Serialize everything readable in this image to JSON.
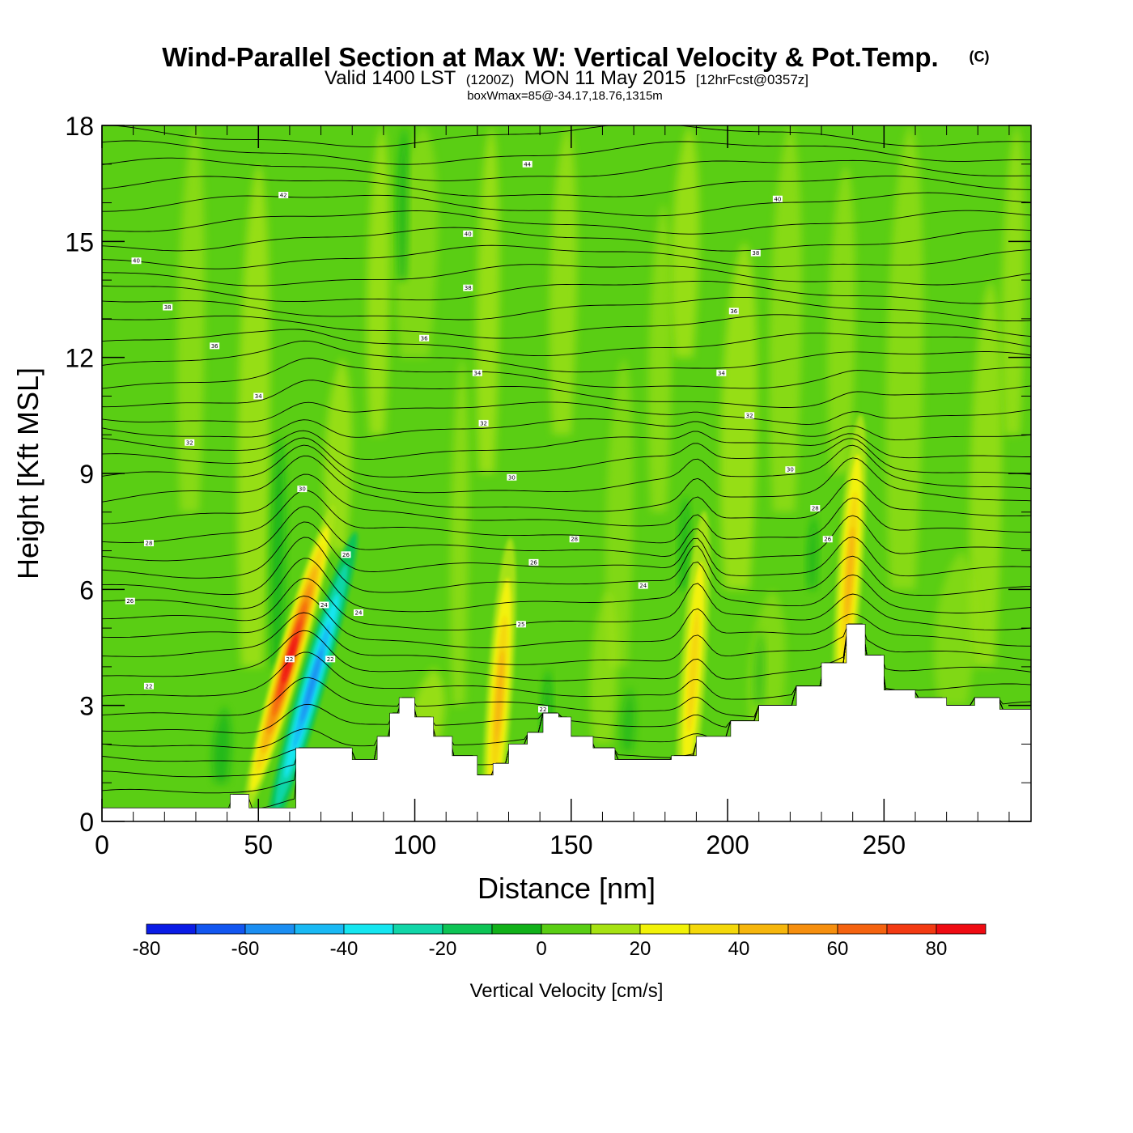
{
  "header": {
    "title": "Wind-Parallel Section at Max W: Vertical Velocity & Pot.Temp.",
    "copyright": "(C)",
    "valid_prefix": "Valid 1400 LST",
    "valid_utc": "(1200Z)",
    "valid_date": "MON 11 May 2015",
    "forecast": "[12hrFcst@0357z]",
    "boxwmax": "boxWmax=85@-34.17,18.76,1315m"
  },
  "chart_data": {
    "type": "cross-section contour",
    "title": "Wind-Parallel Section at Max W: Vertical Velocity & Pot.Temp.",
    "xlabel": "Distance [nm]",
    "ylabel": "Height [Kft MSL]",
    "xlim": [
      0,
      297
    ],
    "ylim": [
      0,
      18
    ],
    "x_ticks": [
      0,
      50,
      100,
      150,
      200,
      250
    ],
    "x_tick_labels": [
      "0",
      "50",
      "100",
      "150",
      "200",
      "250"
    ],
    "y_ticks": [
      0,
      3,
      6,
      9,
      12,
      15,
      18
    ],
    "y_tick_labels": [
      "0",
      "3",
      "6",
      "9",
      "12",
      "15",
      "18"
    ],
    "terrain": {
      "distance": [
        0,
        41,
        41,
        47,
        47,
        62,
        62,
        68,
        68,
        80,
        80,
        88,
        88,
        92,
        92,
        95,
        95,
        100,
        100,
        106,
        106,
        112,
        112,
        120,
        120,
        125,
        125,
        130,
        130,
        136,
        136,
        141,
        141,
        146,
        146,
        150,
        150,
        157,
        157,
        164,
        164,
        182,
        182,
        190,
        190,
        201,
        201,
        210,
        210,
        222,
        222,
        230,
        230,
        238,
        238,
        244,
        244,
        250,
        250,
        260,
        260,
        270,
        270,
        279,
        279,
        287,
        287,
        297
      ],
      "height_kft": [
        0.35,
        0.35,
        0.7,
        0.7,
        0.35,
        0.35,
        1.9,
        1.9,
        1.9,
        1.9,
        1.6,
        1.6,
        2.2,
        2.2,
        2.8,
        2.8,
        3.2,
        3.2,
        2.7,
        2.7,
        2.2,
        2.2,
        1.7,
        1.7,
        1.2,
        1.2,
        1.5,
        1.5,
        2.0,
        2.0,
        2.3,
        2.3,
        2.8,
        2.8,
        2.7,
        2.7,
        2.2,
        2.2,
        1.9,
        1.9,
        1.6,
        1.6,
        1.7,
        1.7,
        2.2,
        2.2,
        2.6,
        2.6,
        3.0,
        3.0,
        3.5,
        3.5,
        4.1,
        4.1,
        5.1,
        5.1,
        4.3,
        4.3,
        3.4,
        3.4,
        3.2,
        3.2,
        3.0,
        3.0,
        3.2,
        3.2,
        2.9,
        2.9
      ]
    },
    "w_maxima": [
      {
        "distance": 60,
        "height_kft": 4.2,
        "w_cms": 85
      },
      {
        "distance": 67,
        "height_kft": 3.5,
        "w_cms": -55
      },
      {
        "distance": 127,
        "height_kft": 3.2,
        "w_cms": 45
      },
      {
        "distance": 189,
        "height_kft": 3.9,
        "w_cms": 35
      },
      {
        "distance": 239,
        "height_kft": 6.4,
        "w_cms": 45
      }
    ],
    "contour_labels": [
      {
        "text": "42",
        "distance": 58,
        "height_kft": 16.2
      },
      {
        "text": "44",
        "distance": 136,
        "height_kft": 17.0
      },
      {
        "text": "40",
        "distance": 11,
        "height_kft": 14.5
      },
      {
        "text": "40",
        "distance": 117,
        "height_kft": 15.2
      },
      {
        "text": "40",
        "distance": 216,
        "height_kft": 16.1
      },
      {
        "text": "38",
        "distance": 21,
        "height_kft": 13.3
      },
      {
        "text": "38",
        "distance": 117,
        "height_kft": 13.8
      },
      {
        "text": "38",
        "distance": 209,
        "height_kft": 14.7
      },
      {
        "text": "36",
        "distance": 36,
        "height_kft": 12.3
      },
      {
        "text": "36",
        "distance": 103,
        "height_kft": 12.5
      },
      {
        "text": "36",
        "distance": 202,
        "height_kft": 13.2
      },
      {
        "text": "34",
        "distance": 50,
        "height_kft": 11.0
      },
      {
        "text": "34",
        "distance": 120,
        "height_kft": 11.6
      },
      {
        "text": "34",
        "distance": 198,
        "height_kft": 11.6
      },
      {
        "text": "32",
        "distance": 28,
        "height_kft": 9.8
      },
      {
        "text": "32",
        "distance": 122,
        "height_kft": 10.3
      },
      {
        "text": "32",
        "distance": 207,
        "height_kft": 10.5
      },
      {
        "text": "30",
        "distance": 64,
        "height_kft": 8.6
      },
      {
        "text": "30",
        "distance": 131,
        "height_kft": 8.9
      },
      {
        "text": "30",
        "distance": 220,
        "height_kft": 9.1
      },
      {
        "text": "28",
        "distance": 15,
        "height_kft": 7.2
      },
      {
        "text": "28",
        "distance": 151,
        "height_kft": 7.3
      },
      {
        "text": "28",
        "distance": 228,
        "height_kft": 8.1
      },
      {
        "text": "26",
        "distance": 78,
        "height_kft": 6.9
      },
      {
        "text": "26",
        "distance": 138,
        "height_kft": 6.7
      },
      {
        "text": "26",
        "distance": 232,
        "height_kft": 7.3
      },
      {
        "text": "26",
        "distance": 9,
        "height_kft": 5.7
      },
      {
        "text": "24",
        "distance": 173,
        "height_kft": 6.1
      },
      {
        "text": "24",
        "distance": 71,
        "height_kft": 5.6
      },
      {
        "text": "24",
        "distance": 82,
        "height_kft": 5.4
      },
      {
        "text": "25",
        "distance": 134,
        "height_kft": 5.1
      },
      {
        "text": "22",
        "distance": 15,
        "height_kft": 3.5
      },
      {
        "text": "22",
        "distance": 73,
        "height_kft": 4.2
      },
      {
        "text": "22",
        "distance": 60,
        "height_kft": 4.2
      },
      {
        "text": "22",
        "distance": 141,
        "height_kft": 2.9
      }
    ]
  },
  "colorbar": {
    "title": "Vertical Velocity [cm/s]",
    "bounds": [
      -80,
      -70,
      -60,
      -50,
      -40,
      -30,
      -20,
      -10,
      0,
      10,
      20,
      30,
      40,
      50,
      60,
      70,
      80,
      90
    ],
    "colors": [
      "#0a1ce6",
      "#1256f0",
      "#1b8ef2",
      "#19b9f4",
      "#15e6f0",
      "#11d6a8",
      "#0dc455",
      "#11b11a",
      "#5ace14",
      "#a6e212",
      "#f2f208",
      "#f4d80a",
      "#f6b60c",
      "#f68f0e",
      "#f5630f",
      "#f33a12",
      "#ef0b12",
      "#d40a37"
    ],
    "tick_values": [
      -80,
      -60,
      -40,
      -20,
      0,
      20,
      40,
      60,
      80
    ],
    "tick_labels": [
      "-80",
      "-60",
      "-40",
      "-20",
      "0",
      "20",
      "40",
      "60",
      "80"
    ]
  },
  "colors": {
    "background_green": "#5ace14",
    "light_green": "#a6e212",
    "dark_green": "#11b11a",
    "terrain_fill": "#ffffff",
    "contour_line": "#000000"
  }
}
